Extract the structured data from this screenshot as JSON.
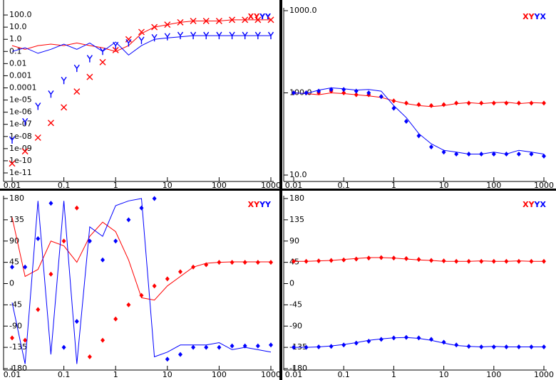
{
  "chart_data": [
    {
      "type": "line",
      "xlog": true,
      "ylog": true,
      "x": [
        0.01,
        0.0178,
        0.0316,
        0.0562,
        0.1,
        0.178,
        0.316,
        0.562,
        1,
        1.78,
        3.16,
        5.62,
        10,
        17.8,
        31.6,
        56.2,
        100,
        178,
        316,
        562,
        1000
      ],
      "xlim": [
        0.01,
        1000
      ],
      "xticks": [
        0.01,
        0.1,
        1,
        10,
        100,
        1000
      ],
      "ylim": [
        1e-11,
        1000
      ],
      "yticks": [
        {
          "value": 100,
          "label": "100.0"
        },
        {
          "value": 10,
          "label": "10.0"
        },
        {
          "value": 1,
          "label": "1.0"
        },
        0.1,
        0.01,
        0.001,
        0.0001,
        {
          "value": 1e-05,
          "label": "1e-05"
        },
        {
          "value": 1e-06,
          "label": "1e-06"
        },
        {
          "value": 1e-07,
          "label": "1e-07"
        },
        {
          "value": 1e-08,
          "label": "1e-08"
        },
        {
          "value": 1e-09,
          "label": "1e-09"
        },
        {
          "value": 1e-10,
          "label": "1e-10"
        },
        {
          "value": 1e-11,
          "label": "1e-11"
        }
      ],
      "series": [
        {
          "name": "XY",
          "color": "#ff0000",
          "marker": "x",
          "values": [
            6e-11,
            6e-10,
            8e-09,
            1.3e-07,
            2.5e-06,
            5e-05,
            0.0008,
            0.013,
            0.13,
            1,
            4,
            10,
            16,
            25,
            32,
            32,
            32,
            40,
            40,
            40,
            40
          ],
          "fit": [
            0.3,
            0.15,
            0.3,
            0.4,
            0.3,
            0.5,
            0.3,
            0.2,
            0.1,
            0.3,
            3,
            10,
            16,
            25,
            32,
            32,
            32,
            40,
            40,
            40,
            40
          ]
        },
        {
          "name": "YY",
          "color": "#0000ff",
          "marker": "Y",
          "values": [
            5e-09,
            1.6e-07,
            3e-06,
            3e-05,
            0.0004,
            0.004,
            0.025,
            0.1,
            0.3,
            0.5,
            0.8,
            1.3,
            1.6,
            2,
            2,
            2,
            2,
            2,
            2,
            2,
            2
          ],
          "fit": [
            0.1,
            0.2,
            0.07,
            0.15,
            0.4,
            0.15,
            0.5,
            0.1,
            0.6,
            0.05,
            0.3,
            1,
            1.3,
            1.6,
            2,
            2,
            2,
            2,
            2,
            2,
            2
          ]
        }
      ]
    },
    {
      "type": "line",
      "xlog": true,
      "ylog": true,
      "x": [
        0.01,
        0.0178,
        0.0316,
        0.0562,
        0.1,
        0.178,
        0.316,
        0.562,
        1,
        1.78,
        3.16,
        5.62,
        10,
        17.8,
        31.6,
        56.2,
        100,
        178,
        316,
        562,
        1000
      ],
      "xlim": [
        0.01,
        1000
      ],
      "xticks": [
        0.01,
        0.1,
        1,
        10,
        100,
        1000
      ],
      "ylim": [
        10,
        1000
      ],
      "yticks": [
        {
          "value": 1000,
          "label": "1000.0"
        },
        {
          "value": 100,
          "label": "100.0"
        },
        {
          "value": 10,
          "label": "10.0"
        }
      ],
      "series": [
        {
          "name": "XY",
          "color": "#ff0000",
          "marker": "diamond",
          "values": [
            100,
            100,
            100,
            105,
            100,
            95,
            95,
            90,
            80,
            75,
            72,
            70,
            72,
            75,
            75,
            75,
            75,
            75,
            75,
            75,
            75
          ],
          "fit": [
            100,
            98,
            95,
            100,
            98,
            95,
            92,
            88,
            80,
            74,
            70,
            68,
            70,
            74,
            76,
            74,
            76,
            77,
            74,
            76,
            75
          ]
        },
        {
          "name": "YX",
          "color": "#0000ff",
          "marker": "diamond",
          "values": [
            100,
            100,
            105,
            110,
            110,
            105,
            100,
            90,
            65,
            45,
            30,
            22,
            19,
            18,
            18,
            18,
            18,
            18,
            18,
            18,
            17
          ],
          "fit": [
            100,
            98,
            108,
            115,
            112,
            108,
            110,
            105,
            70,
            50,
            32,
            24,
            20,
            19,
            18,
            18,
            19,
            18,
            20,
            19,
            18
          ]
        }
      ]
    },
    {
      "type": "line",
      "xlog": true,
      "ylog": false,
      "x": [
        0.01,
        0.0178,
        0.0316,
        0.0562,
        0.1,
        0.178,
        0.316,
        0.562,
        1,
        1.78,
        3.16,
        5.62,
        10,
        17.8,
        31.6,
        56.2,
        100,
        178,
        316,
        562,
        1000
      ],
      "xlim": [
        0.01,
        1000
      ],
      "xticks": [
        0.01,
        0.1,
        1,
        10,
        100,
        1000
      ],
      "ylim": [
        -180,
        180
      ],
      "yticks": [
        180,
        135,
        90,
        45,
        0,
        -45,
        -90,
        -135,
        -180
      ],
      "series": [
        {
          "name": "XY",
          "color": "#ff0000",
          "marker": "diamond",
          "values": [
            -115,
            -120,
            -55,
            20,
            90,
            160,
            -155,
            -120,
            -75,
            -45,
            -25,
            -5,
            10,
            25,
            35,
            40,
            45,
            45,
            45,
            45,
            45
          ],
          "fit": [
            140,
            15,
            30,
            90,
            80,
            45,
            100,
            130,
            110,
            50,
            -30,
            -35,
            -5,
            15,
            35,
            43,
            45,
            46,
            46,
            46,
            46
          ]
        },
        {
          "name": "YY",
          "color": "#0000ff",
          "marker": "diamond",
          "values": [
            35,
            35,
            95,
            170,
            -135,
            -80,
            90,
            50,
            90,
            135,
            160,
            180,
            -160,
            -150,
            -135,
            -135,
            -135,
            -132,
            -132,
            -132,
            -130
          ],
          "fit": [
            -40,
            -170,
            175,
            -150,
            175,
            -170,
            120,
            100,
            165,
            175,
            180,
            -155,
            -145,
            -130,
            -130,
            -130,
            -125,
            -140,
            -135,
            -140,
            -145
          ]
        }
      ]
    },
    {
      "type": "line",
      "xlog": true,
      "ylog": false,
      "x": [
        0.01,
        0.0178,
        0.0316,
        0.0562,
        0.1,
        0.178,
        0.316,
        0.562,
        1,
        1.78,
        3.16,
        5.62,
        10,
        17.8,
        31.6,
        56.2,
        100,
        178,
        316,
        562,
        1000
      ],
      "xlim": [
        0.01,
        1000
      ],
      "xticks": [
        0.01,
        0.1,
        1,
        10,
        100,
        1000
      ],
      "ylim": [
        -180,
        180
      ],
      "yticks": [
        180,
        135,
        90,
        45,
        0,
        -45,
        -90,
        -135,
        -180
      ],
      "series": [
        {
          "name": "XY",
          "color": "#ff0000",
          "marker": "diamond",
          "values": [
            47,
            47,
            48,
            49,
            50,
            52,
            54,
            55,
            54,
            53,
            51,
            49,
            48,
            47,
            47,
            47,
            47,
            47,
            47,
            47,
            47
          ],
          "fit": [
            47,
            47,
            48,
            49,
            51,
            53,
            55,
            55,
            54,
            52,
            50,
            49,
            47,
            47,
            47,
            48,
            47,
            47,
            48,
            47,
            47
          ]
        },
        {
          "name": "YX",
          "color": "#0000ff",
          "marker": "diamond",
          "values": [
            -135,
            -135,
            -134,
            -133,
            -130,
            -126,
            -122,
            -118,
            -115,
            -114,
            -115,
            -118,
            -124,
            -130,
            -133,
            -134,
            -134,
            -134,
            -134,
            -134,
            -134
          ],
          "fit": [
            -135,
            -135,
            -134,
            -132,
            -129,
            -125,
            -120,
            -117,
            -115,
            -114,
            -116,
            -120,
            -126,
            -131,
            -133,
            -134,
            -133,
            -134,
            -134,
            -134,
            -134
          ]
        }
      ]
    }
  ]
}
